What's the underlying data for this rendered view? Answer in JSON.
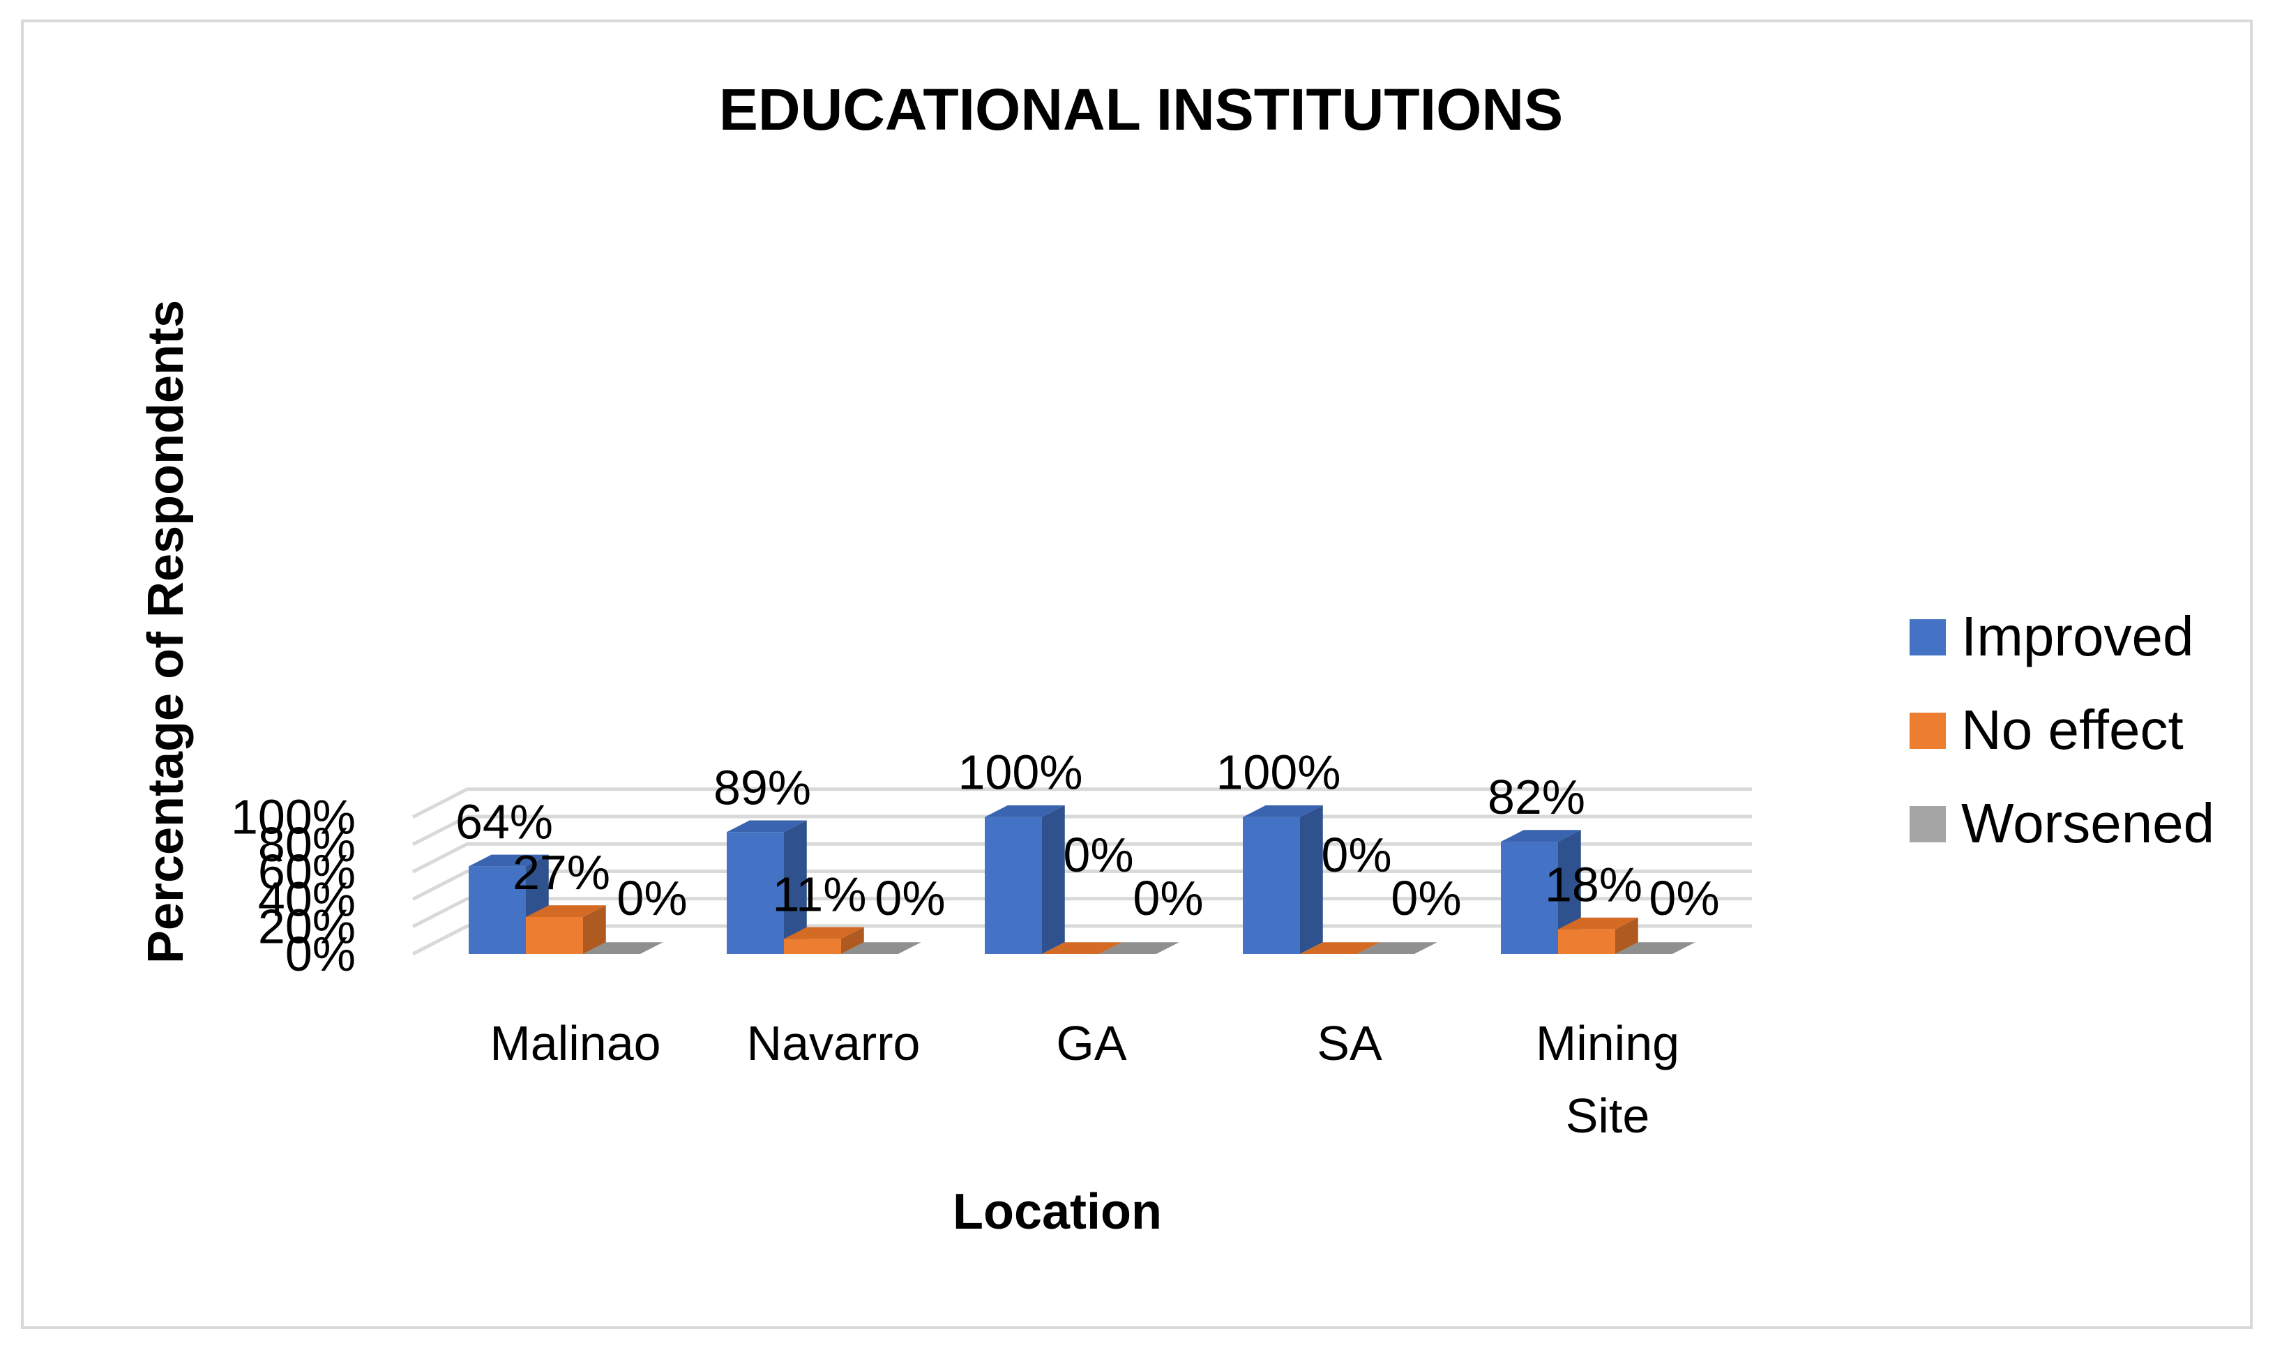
{
  "chart_data": {
    "type": "bar",
    "title": "EDUCATIONAL INSTITUTIONS",
    "xlabel": "Location",
    "ylabel": "Percentage of Respondents",
    "categories": [
      "Malinao",
      "Navarro",
      "GA",
      "SA",
      "Mining Site"
    ],
    "series": [
      {
        "name": "Improved",
        "values": [
          64,
          89,
          100,
          100,
          82
        ],
        "labels": [
          "64%",
          "89%",
          "100%",
          "100%",
          "82%"
        ],
        "color": "#4472c4",
        "color_side": "#2f528f",
        "color_top": "#3b64b0"
      },
      {
        "name": "No effect",
        "values": [
          27,
          11,
          0,
          0,
          18
        ],
        "labels": [
          "27%",
          "11%",
          "0%",
          "0%",
          "18%"
        ],
        "color": "#ed7d31",
        "color_side": "#ae5a21",
        "color_top": "#d46b24"
      },
      {
        "name": "Worsened",
        "values": [
          0,
          0,
          0,
          0,
          0
        ],
        "labels": [
          "0%",
          "0%",
          "0%",
          "0%",
          "0%"
        ],
        "color": "#a5a5a5",
        "color_side": "#7b7b7b",
        "color_top": "#8f8f8f"
      }
    ],
    "yticks": [
      "0%",
      "20%",
      "40%",
      "60%",
      "80%",
      "100%"
    ],
    "ylim": [
      0,
      100
    ],
    "grid": true,
    "legend_position": "right",
    "view": "3d-clustered-column"
  }
}
